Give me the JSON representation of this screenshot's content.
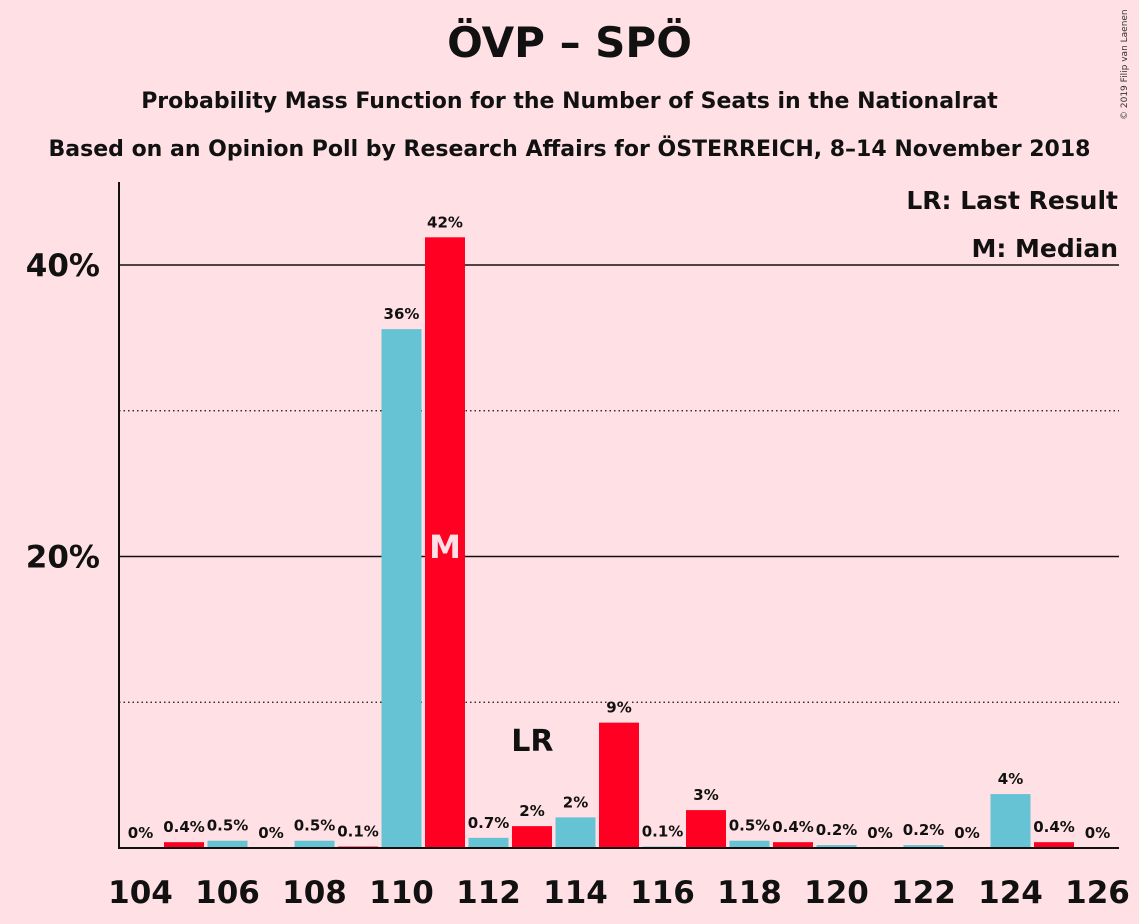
{
  "title": "ÖVP – SPÖ",
  "subtitle": "Probability Mass Function for the Number of Seats in the Nationalrat",
  "subtitle2": "Based on an Opinion Poll by Research Affairs for ÖSTERREICH, 8–14 November 2018",
  "copyright": "© 2019 Filip van Laenen",
  "legend": {
    "last_result": "LR: Last Result",
    "median": "M: Median"
  },
  "colors": {
    "background": "#FFE0E5",
    "bar_blue": "#66C3D3",
    "bar_red": "#FF0022",
    "text": "#111111"
  },
  "chart_data": {
    "type": "bar",
    "title": "ÖVP – SPÖ",
    "xlabel": "",
    "ylabel": "",
    "ylim": [
      0,
      45
    ],
    "yticks": [
      {
        "value": 20,
        "label": "20%"
      },
      {
        "value": 40,
        "label": "40%"
      }
    ],
    "minor_gridlines": [
      10,
      30
    ],
    "x_tick_labels": [
      "104",
      "106",
      "108",
      "110",
      "112",
      "114",
      "116",
      "118",
      "120",
      "122",
      "124",
      "126"
    ],
    "median_seat": 111,
    "median_label": "M",
    "last_result_seat": 114,
    "last_result_label": "LR",
    "bars": [
      {
        "seat": 104,
        "value": 0,
        "label": "0%",
        "color": "blue"
      },
      {
        "seat": 105,
        "value": 0.4,
        "label": "0.4%",
        "color": "red"
      },
      {
        "seat": 106,
        "value": 0.5,
        "label": "0.5%",
        "color": "blue"
      },
      {
        "seat": 107,
        "value": 0,
        "label": "0%",
        "color": "red"
      },
      {
        "seat": 108,
        "value": 0.5,
        "label": "0.5%",
        "color": "blue"
      },
      {
        "seat": 109,
        "value": 0.1,
        "label": "0.1%",
        "color": "red"
      },
      {
        "seat": 110,
        "value": 35.6,
        "label": "36%",
        "color": "blue"
      },
      {
        "seat": 111,
        "value": 41.9,
        "label": "42%",
        "color": "red"
      },
      {
        "seat": 112,
        "value": 0.7,
        "label": "0.7%",
        "color": "blue"
      },
      {
        "seat": 113,
        "value": 1.5,
        "label": "2%",
        "color": "red"
      },
      {
        "seat": 114,
        "value": 2.1,
        "label": "2%",
        "color": "blue"
      },
      {
        "seat": 115,
        "value": 8.6,
        "label": "9%",
        "color": "red"
      },
      {
        "seat": 116,
        "value": 0.1,
        "label": "0.1%",
        "color": "blue"
      },
      {
        "seat": 117,
        "value": 2.6,
        "label": "3%",
        "color": "red"
      },
      {
        "seat": 118,
        "value": 0.5,
        "label": "0.5%",
        "color": "blue"
      },
      {
        "seat": 119,
        "value": 0.4,
        "label": "0.4%",
        "color": "red"
      },
      {
        "seat": 120,
        "value": 0.2,
        "label": "0.2%",
        "color": "blue"
      },
      {
        "seat": 121,
        "value": 0,
        "label": "0%",
        "color": "red"
      },
      {
        "seat": 122,
        "value": 0.2,
        "label": "0.2%",
        "color": "blue"
      },
      {
        "seat": 123,
        "value": 0,
        "label": "0%",
        "color": "red"
      },
      {
        "seat": 124,
        "value": 3.7,
        "label": "4%",
        "color": "blue"
      },
      {
        "seat": 125,
        "value": 0.4,
        "label": "0.4%",
        "color": "red"
      },
      {
        "seat": 126,
        "value": 0,
        "label": "0%",
        "color": "blue"
      }
    ]
  }
}
